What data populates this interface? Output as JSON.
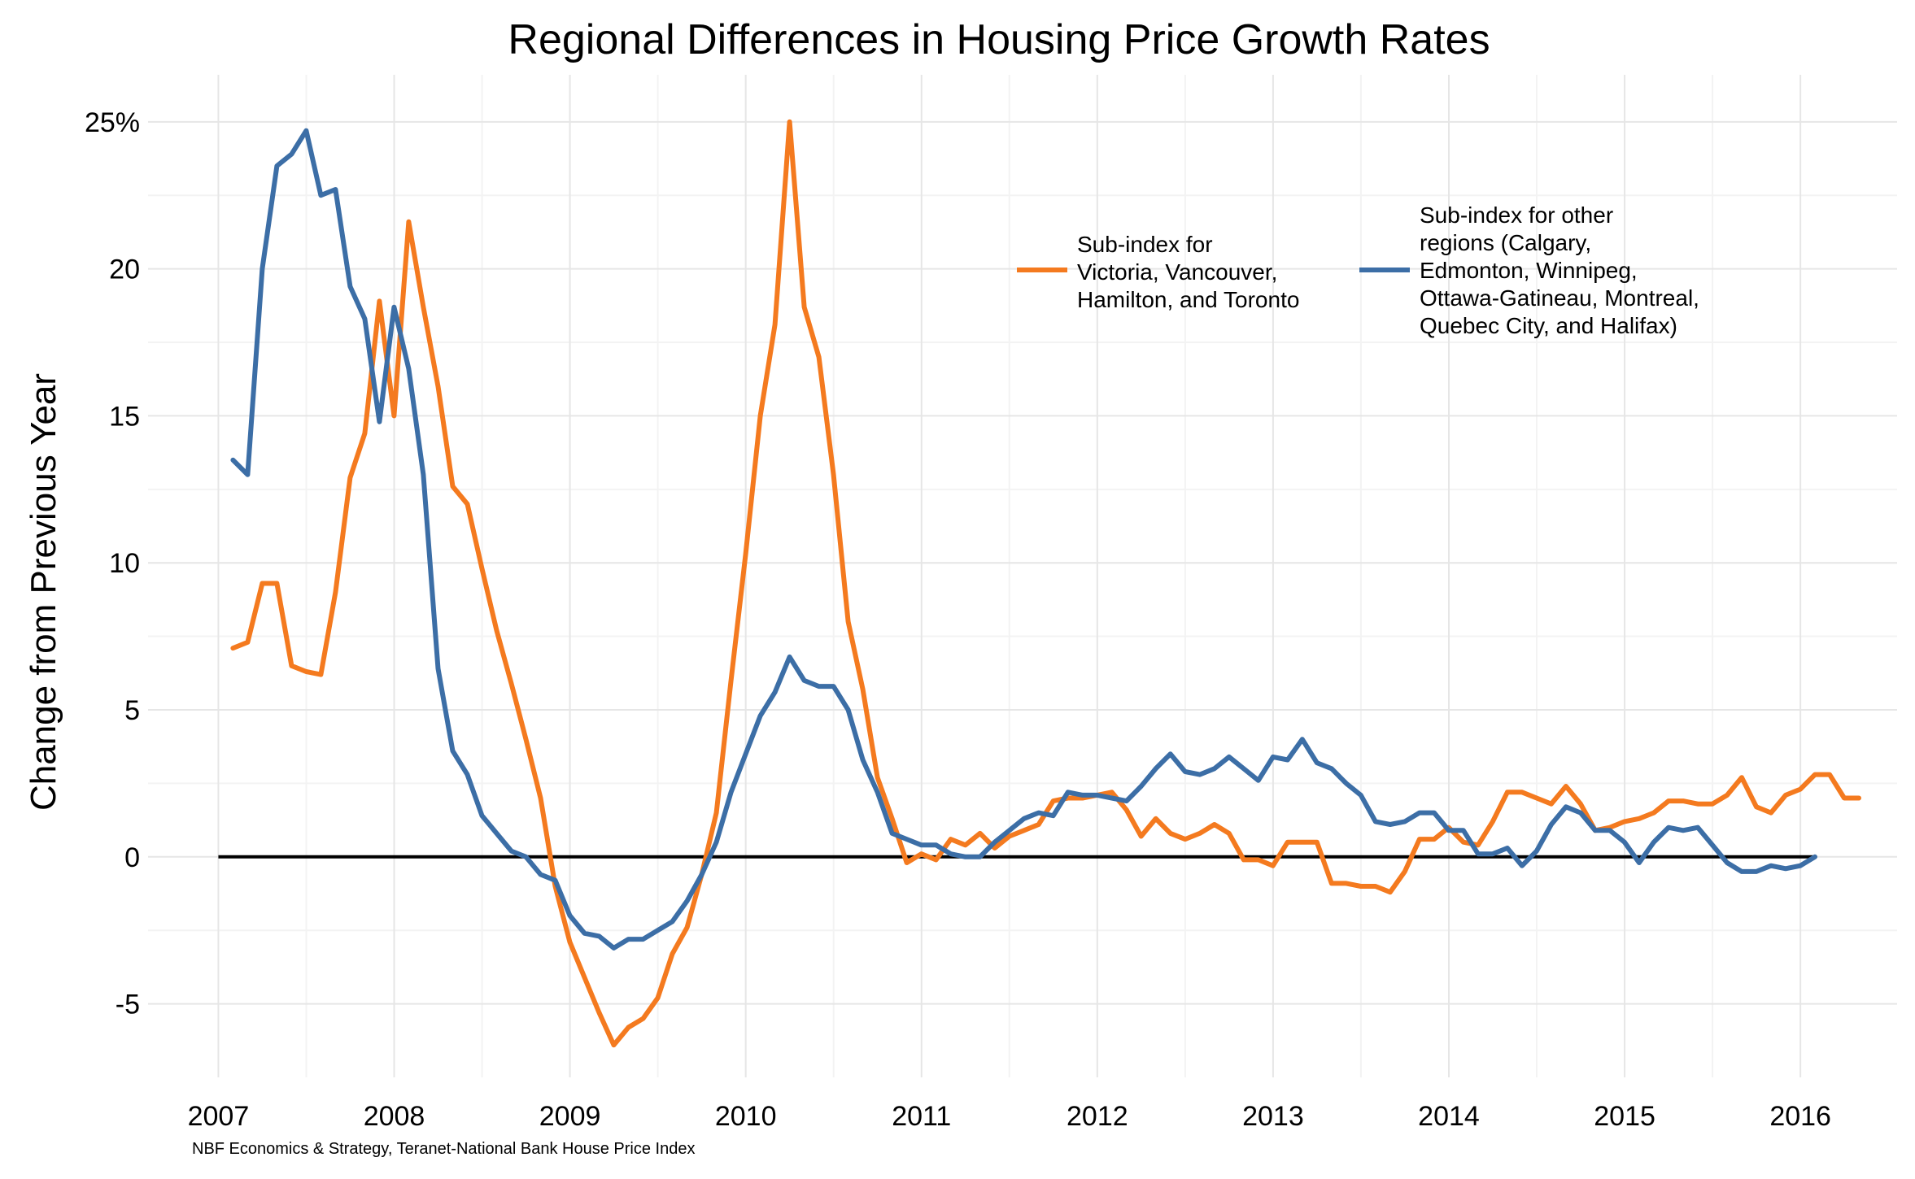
{
  "chart_data": {
    "type": "line",
    "title": "Regional Differences in Housing Price Growth Rates",
    "ylabel": "Change from Previous Year",
    "xlabel": "",
    "caption": "NBF Economics & Strategy, Teranet-National Bank House Price Index",
    "xlim": [
      2006.6,
      2016.55
    ],
    "ylim": [
      -7.5,
      26.6
    ],
    "grid": true,
    "legend_position": "top-right",
    "x_ticks": [
      2007,
      2008,
      2009,
      2010,
      2011,
      2012,
      2013,
      2014,
      2015,
      2016
    ],
    "x_tick_labels": [
      "2007",
      "2008",
      "2009",
      "2010",
      "2011",
      "2012",
      "2013",
      "2014",
      "2015",
      "2016"
    ],
    "y_ticks": [
      -5,
      0,
      5,
      10,
      15,
      20,
      25
    ],
    "y_tick_labels": [
      "-5",
      "0",
      "5",
      "10",
      "15",
      "20",
      "25%"
    ],
    "reference_line_y": 0,
    "colors": {
      "orange": "#F47A1F",
      "blue": "#3C6EA6",
      "zero_line": "#000000",
      "grid": "#E6E6E6"
    },
    "series": [
      {
        "name": "Sub-index for Victoria, Vancouver, Hamilton, and Toronto",
        "legend_lines": [
          "Sub-index for",
          "Victoria, Vancouver,",
          "Hamilton, and Toronto"
        ],
        "color": "#F47A1F",
        "x_start": 2007.083,
        "x_step": 0.08333,
        "values": [
          7.1,
          7.3,
          9.3,
          9.3,
          6.5,
          6.3,
          6.2,
          9.0,
          12.9,
          14.4,
          18.9,
          15.0,
          21.6,
          18.7,
          16.0,
          12.6,
          12.0,
          9.8,
          7.7,
          5.9,
          4.0,
          2.0,
          -1.0,
          -2.9,
          -4.1,
          -5.3,
          -6.4,
          -5.8,
          -5.5,
          -4.8,
          -3.3,
          -2.4,
          -0.6,
          1.5,
          6.0,
          10.3,
          15.0,
          18.1,
          25.0,
          18.7,
          17.0,
          13.0,
          8.0,
          5.7,
          2.7,
          1.3,
          -0.2,
          0.1,
          -0.1,
          0.6,
          0.4,
          0.8,
          0.3,
          0.7,
          0.9,
          1.1,
          1.9,
          2.0,
          2.0,
          2.1,
          2.2,
          1.6,
          0.7,
          1.3,
          0.8,
          0.6,
          0.8,
          1.1,
          0.8,
          -0.1,
          -0.1,
          -0.3,
          0.5,
          0.5,
          0.5,
          -0.9,
          -0.9,
          -1.0,
          -1.0,
          -1.2,
          -0.5,
          0.6,
          0.6,
          1.0,
          0.5,
          0.4,
          1.2,
          2.2,
          2.2,
          2.0,
          1.8,
          2.4,
          1.8,
          0.9,
          1.0,
          1.2,
          1.3,
          1.5,
          1.9,
          1.9,
          1.8,
          1.8,
          2.1,
          2.7,
          1.7,
          1.5,
          2.1,
          2.3,
          2.8,
          2.8,
          2.0,
          2.0
        ]
      },
      {
        "name": "Sub-index for other regions (Calgary, Edmonton, Winnipeg, Ottawa-Gatineau, Montreal, Quebec City, and Halifax)",
        "legend_lines": [
          "Sub-index for other",
          "regions (Calgary,",
          "Edmonton, Winnipeg,",
          "Ottawa-Gatineau, Montreal,",
          "Quebec City, and Halifax)"
        ],
        "color": "#3C6EA6",
        "x_start": 2007.083,
        "x_step": 0.08333,
        "values": [
          13.5,
          13.0,
          20.0,
          23.5,
          23.9,
          24.7,
          22.5,
          22.7,
          19.4,
          18.3,
          14.8,
          18.7,
          16.6,
          13.0,
          6.4,
          3.6,
          2.8,
          1.4,
          0.8,
          0.2,
          0.0,
          -0.6,
          -0.8,
          -2.0,
          -2.6,
          -2.7,
          -3.1,
          -2.8,
          -2.8,
          -2.5,
          -2.2,
          -1.5,
          -0.6,
          0.5,
          2.2,
          3.5,
          4.8,
          5.6,
          6.8,
          6.0,
          5.8,
          5.8,
          5.0,
          3.3,
          2.2,
          0.8,
          0.6,
          0.4,
          0.4,
          0.1,
          0.0,
          0.0,
          0.5,
          0.9,
          1.3,
          1.5,
          1.4,
          2.2,
          2.1,
          2.1,
          2.0,
          1.9,
          2.4,
          3.0,
          3.5,
          2.9,
          2.8,
          3.0,
          3.4,
          3.0,
          2.6,
          3.4,
          3.3,
          4.0,
          3.2,
          3.0,
          2.5,
          2.1,
          1.2,
          1.1,
          1.2,
          1.5,
          1.5,
          0.9,
          0.9,
          0.1,
          0.1,
          0.3,
          -0.3,
          0.2,
          1.1,
          1.7,
          1.5,
          0.9,
          0.9,
          0.5,
          -0.2,
          0.5,
          1.0,
          0.9,
          1.0,
          0.4,
          -0.2,
          -0.5,
          -0.5,
          -0.3,
          -0.4,
          -0.3,
          0.0
        ]
      }
    ]
  }
}
